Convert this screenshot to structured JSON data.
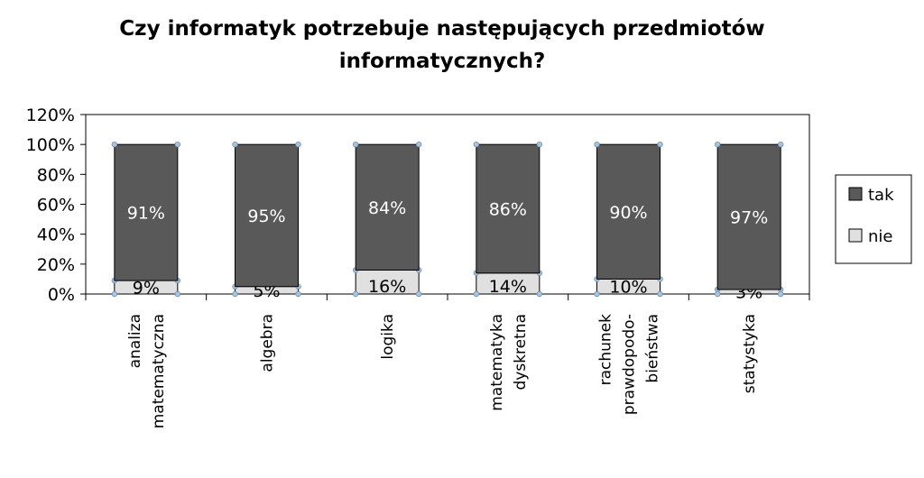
{
  "chart_data": {
    "type": "bar",
    "stacked": true,
    "title": "Czy informatyk potrzebuje następujących przedmiotów informatycznych?",
    "categories": [
      [
        "analiza",
        "matematyczna"
      ],
      [
        "algebra"
      ],
      [
        "logika"
      ],
      [
        "matematyka",
        "dyskretna"
      ],
      [
        "rachunek",
        "prawdopodo-",
        "bieństwa"
      ],
      [
        "statystyka"
      ]
    ],
    "series": [
      {
        "name": "nie",
        "color": "#e0e0e0",
        "values": [
          9,
          5,
          16,
          14,
          10,
          3
        ],
        "labels": [
          "9%",
          "5%",
          "16%",
          "14%",
          "10%",
          "3%"
        ]
      },
      {
        "name": "tak",
        "color": "#595959",
        "values": [
          91,
          95,
          84,
          86,
          90,
          97
        ],
        "labels": [
          "91%",
          "95%",
          "84%",
          "86%",
          "90%",
          "97%"
        ]
      }
    ],
    "ylim": [
      0,
      120
    ],
    "yticks": [
      "0%",
      "20%",
      "40%",
      "60%",
      "80%",
      "100%",
      "120%"
    ],
    "legend": "right",
    "grid": false
  }
}
